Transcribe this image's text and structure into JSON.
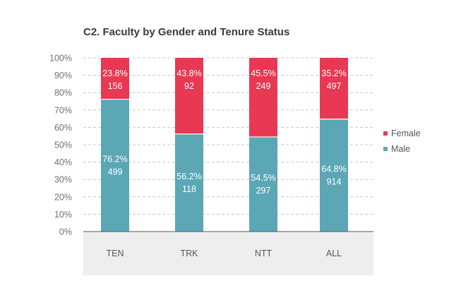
{
  "chart_data": {
    "type": "bar",
    "stacked": true,
    "title": "C2. Faculty by Gender and Tenure Status",
    "xlabel": "",
    "ylabel": "",
    "ylim": [
      0,
      100
    ],
    "y_ticks": [
      "0%",
      "10%",
      "20%",
      "30%",
      "40%",
      "50%",
      "60%",
      "70%",
      "80%",
      "90%",
      "100%"
    ],
    "grid": true,
    "legend_position": "right",
    "categories": [
      "TEN",
      "TRK",
      "NTT",
      "ALL"
    ],
    "series": [
      {
        "name": "Male",
        "color": "#5ba7b5",
        "values": [
          76.2,
          56.2,
          54.5,
          64.8
        ],
        "percent_labels": [
          "76.2%",
          "56.2%",
          "54.5%",
          "64.8%"
        ],
        "count_labels": [
          "499",
          "118",
          "297",
          "914"
        ]
      },
      {
        "name": "Female",
        "color": "#e83853",
        "values": [
          23.8,
          43.8,
          45.5,
          35.2
        ],
        "percent_labels": [
          "23.8%",
          "43.8%",
          "45.5%",
          "35.2%"
        ],
        "count_labels": [
          "156",
          "92",
          "249",
          "497"
        ]
      }
    ],
    "legend_order": [
      "Female",
      "Male"
    ],
    "colors": {
      "axis_band": "#eeeeee",
      "grid": "#c8c8c8",
      "axis_line": "#555555"
    }
  }
}
